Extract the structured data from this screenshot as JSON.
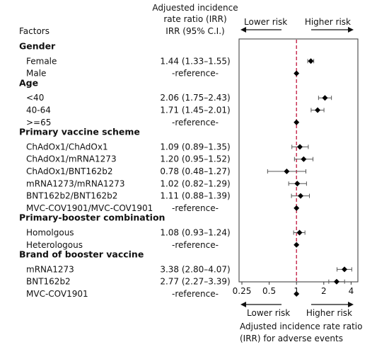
{
  "chart_data": {
    "type": "forest",
    "header": {
      "factors": "Factors",
      "irr_title_1": "Adjuested incidence",
      "irr_title_2": "rate ratio (IRR)",
      "irr_col": "IRR (95% C.I.)"
    },
    "top_arrows": {
      "left": "Lower risk",
      "right": "Higher risk"
    },
    "bottom_arrows": {
      "left": "Lower risk",
      "right": "Higher risk"
    },
    "xlabel_1": "Adjusted incidence rate ratio",
    "xlabel_2": "(IRR) for adverse events",
    "x_scale": "log2",
    "xlim": [
      0.25,
      5
    ],
    "x_ticks": [
      {
        "v": 0.25,
        "label": "0.25"
      },
      {
        "v": 0.5,
        "label": "0.5"
      },
      {
        "v": 1,
        "label": "1"
      },
      {
        "v": 2,
        "label": "2"
      },
      {
        "v": 4,
        "label": "4"
      }
    ],
    "reference_line": 1,
    "rows": [
      {
        "kind": "group",
        "label": "Gender"
      },
      {
        "kind": "item",
        "label": "Female",
        "text": "1.44 (1.33–1.55)",
        "irr": 1.44,
        "lo": 1.33,
        "hi": 1.55
      },
      {
        "kind": "item",
        "label": "Male",
        "text": "-reference-",
        "irr": 1
      },
      {
        "kind": "group",
        "label": "Age"
      },
      {
        "kind": "item",
        "label": "<40",
        "text": "2.06 (1.75–2.43)",
        "irr": 2.06,
        "lo": 1.75,
        "hi": 2.43
      },
      {
        "kind": "item",
        "label": "40-64",
        "text": "1.71 (1.45–2.01)",
        "irr": 1.71,
        "lo": 1.45,
        "hi": 2.01
      },
      {
        "kind": "item",
        "label": ">=65",
        "text": "-reference-",
        "irr": 1
      },
      {
        "kind": "group",
        "label": "Primary vaccine scheme"
      },
      {
        "kind": "item",
        "label": "ChAdOx1/ChAdOx1",
        "text": "1.09 (0.89–1.35)",
        "irr": 1.09,
        "lo": 0.89,
        "hi": 1.35
      },
      {
        "kind": "item",
        "label": "ChAdOx1/mRNA1273",
        "text": "1.20 (0.95–1.52)",
        "irr": 1.2,
        "lo": 0.95,
        "hi": 1.52
      },
      {
        "kind": "item",
        "label": "ChAdOx1/BNT162b2",
        "text": "0.78 (0.48–1.27)",
        "irr": 0.78,
        "lo": 0.48,
        "hi": 1.27
      },
      {
        "kind": "item",
        "label": "mRNA1273/mRNA1273",
        "text": "1.02 (0.82–1.29)",
        "irr": 1.02,
        "lo": 0.82,
        "hi": 1.29
      },
      {
        "kind": "item",
        "label": "BNT162b2/BNT162b2",
        "text": "1.11 (0.88–1.39)",
        "irr": 1.11,
        "lo": 0.88,
        "hi": 1.39
      },
      {
        "kind": "item",
        "label": "MVC-COV1901/MVC-COV1901",
        "text": "-reference-",
        "irr": 1
      },
      {
        "kind": "group",
        "label": "Primary-booster combination"
      },
      {
        "kind": "item",
        "label": "Homolgous",
        "text": "1.08 (0.93–1.24)",
        "irr": 1.08,
        "lo": 0.93,
        "hi": 1.24
      },
      {
        "kind": "item",
        "label": "Heterologous",
        "text": "-reference-",
        "irr": 1
      },
      {
        "kind": "group",
        "label": "Brand of booster vaccine"
      },
      {
        "kind": "item",
        "label": "mRNA1273",
        "text": "3.38 (2.80–4.07)",
        "irr": 3.38,
        "lo": 2.8,
        "hi": 4.07
      },
      {
        "kind": "item",
        "label": "BNT162b2",
        "text": "2.77 (2.27–3.39)",
        "irr": 2.77,
        "lo": 2.27,
        "hi": 3.39
      },
      {
        "kind": "item",
        "label": "MVC-COV1901",
        "text": "-reference-",
        "irr": 1
      }
    ],
    "colors": {
      "reference_line": "#c0143c",
      "marker": "#000000",
      "ci": "#555555",
      "frame": "#333333"
    }
  }
}
